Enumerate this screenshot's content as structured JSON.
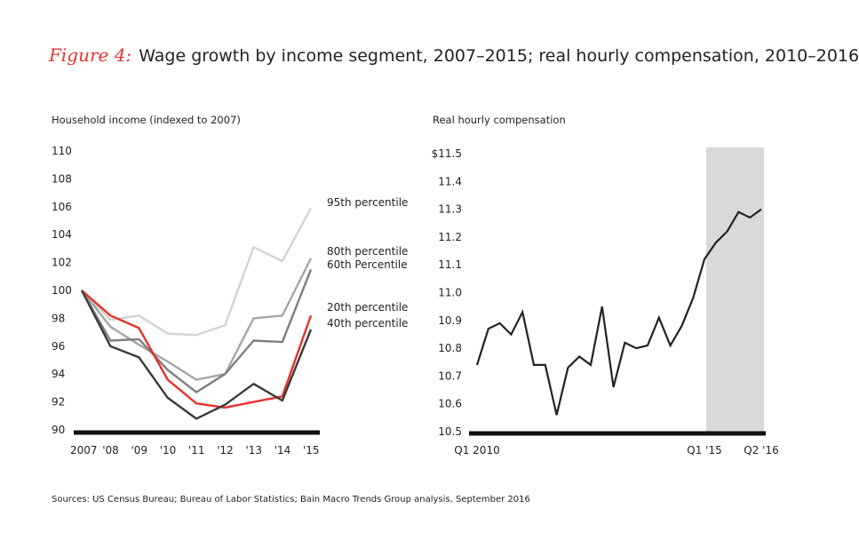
{
  "title": {
    "figure_label": "Figure 4:",
    "text": "Wage growth by income segment, 2007–2015; real hourly compensation, 2010–2016"
  },
  "source": "Sources: US Census Bureau; Bureau of Labor Statistics; Bain Macro Trends Group analysis, September 2016",
  "chart_data": [
    {
      "type": "line",
      "subtitle": "Household income (indexed to 2007)",
      "xlabel": "",
      "ylabel": "Household income (indexed to 2007)",
      "categories": [
        "2007",
        "'08",
        "'09",
        "'10",
        "'11",
        "'12",
        "'13",
        "'14",
        "'15"
      ],
      "ylim": [
        90,
        110
      ],
      "yticks": [
        90,
        92,
        94,
        96,
        98,
        100,
        102,
        104,
        106,
        108,
        110
      ],
      "series": [
        {
          "name": "95th percentile",
          "color": "#d3d3d3",
          "values": [
            100,
            97.9,
            98.2,
            96.9,
            96.8,
            97.5,
            103.1,
            102.1,
            105.9
          ]
        },
        {
          "name": "80th percentile",
          "color": "#a6a6a6",
          "values": [
            100,
            97.4,
            96.1,
            94.9,
            93.6,
            94.0,
            98.0,
            98.2,
            102.3
          ]
        },
        {
          "name": "60th Percentile",
          "color": "#7f7f7f",
          "values": [
            100,
            96.4,
            96.5,
            94.3,
            92.7,
            94.0,
            96.4,
            96.3,
            101.5
          ]
        },
        {
          "name": "20th percentile",
          "color": "#e8312b",
          "values": [
            100,
            98.2,
            97.3,
            93.6,
            91.9,
            91.6,
            92.0,
            92.4,
            98.2
          ]
        },
        {
          "name": "40th percentile",
          "color": "#3a3a3a",
          "values": [
            100,
            96.0,
            95.2,
            92.3,
            90.8,
            91.8,
            93.3,
            92.1,
            97.2
          ]
        }
      ]
    },
    {
      "type": "line",
      "subtitle": "Real hourly compensation",
      "xlabel": "",
      "ylabel": "Real hourly compensation",
      "ylim": [
        10.5,
        11.5
      ],
      "yticks": [
        "10.5",
        "10.6",
        "10.7",
        "10.8",
        "10.9",
        "11.0",
        "11.1",
        "11.2",
        "11.3",
        "11.4",
        "$11.5"
      ],
      "x_tick_labels": [
        {
          "label": "Q1 2010",
          "index": 0
        },
        {
          "label": "Q1 '15",
          "index": 20
        },
        {
          "label": "Q2 '16",
          "index": 25
        }
      ],
      "shaded_region": {
        "from_index": 20,
        "to_index": 26
      },
      "series": [
        {
          "name": "Real hourly compensation",
          "color": "#222222",
          "values": [
            10.74,
            10.87,
            10.89,
            10.85,
            10.93,
            10.74,
            10.74,
            10.56,
            10.73,
            10.77,
            10.74,
            10.95,
            10.66,
            10.82,
            10.8,
            10.81,
            10.91,
            10.81,
            10.88,
            10.98,
            11.12,
            11.18,
            11.22,
            11.29,
            11.27,
            11.3
          ]
        }
      ]
    }
  ]
}
